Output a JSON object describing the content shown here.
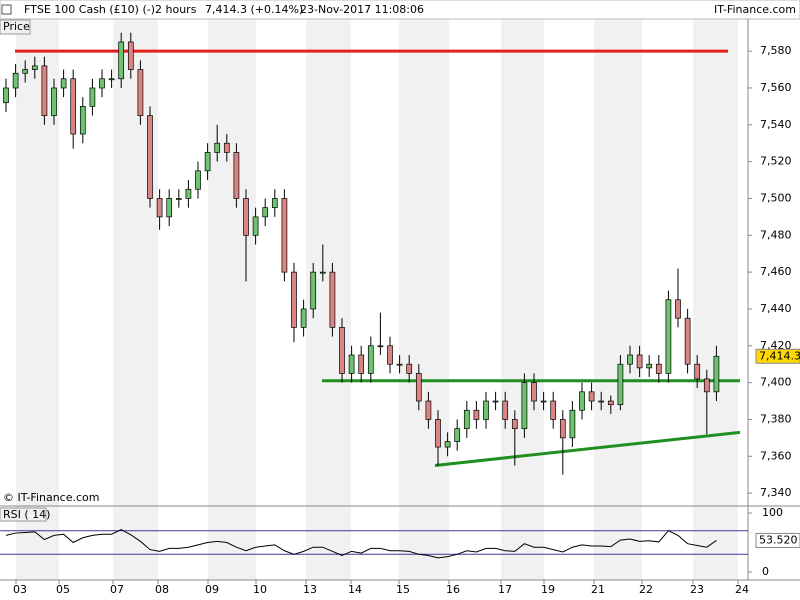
{
  "chart_data": {
    "type": "candlestick",
    "title": "FTSE 100 Cash (£10) (-)",
    "interval": "2 hours",
    "quote": "7,414.3 (+0.14%)",
    "timestamp": "23-Nov-2017 11:08:06",
    "brand": "IT-Finance.com",
    "panel_label": "Price",
    "copyright": "© IT-Finance.com",
    "up_color": "#6cc46c",
    "down_color": "#d98585",
    "open": [
      7552,
      7560,
      7568,
      7570,
      7572,
      7545,
      7560,
      7565,
      7535,
      7550,
      7560,
      7565,
      7565,
      7585,
      7570,
      7545,
      7500,
      7490,
      7500,
      7500,
      7505,
      7515,
      7525,
      7530,
      7525,
      7500,
      7480,
      7490,
      7495,
      7500,
      7460,
      7430,
      7440,
      7460,
      7460,
      7430,
      7405,
      7415,
      7405,
      7420,
      7420,
      7410,
      7410,
      7405,
      7390,
      7380,
      7365,
      7368,
      7375,
      7385,
      7380,
      7390,
      7390,
      7380,
      7375,
      7400,
      7390,
      7390,
      7380,
      7370,
      7385,
      7395,
      7390,
      7390,
      7388,
      7410,
      7415,
      7408,
      7410,
      7405,
      7445,
      7435,
      7410,
      7402,
      7395
    ],
    "high": [
      7565,
      7573,
      7575,
      7577,
      7577,
      7565,
      7570,
      7570,
      7555,
      7565,
      7570,
      7570,
      7590,
      7590,
      7575,
      7550,
      7505,
      7505,
      7505,
      7510,
      7520,
      7530,
      7540,
      7535,
      7530,
      7505,
      7495,
      7500,
      7505,
      7505,
      7465,
      7445,
      7465,
      7475,
      7465,
      7435,
      7420,
      7420,
      7425,
      7438,
      7425,
      7415,
      7415,
      7410,
      7395,
      7385,
      7373,
      7380,
      7390,
      7390,
      7395,
      7395,
      7395,
      7385,
      7405,
      7405,
      7395,
      7395,
      7385,
      7390,
      7400,
      7400,
      7395,
      7393,
      7415,
      7420,
      7420,
      7415,
      7415,
      7450,
      7462,
      7440,
      7415,
      7407,
      7420
    ],
    "low": [
      7547,
      7555,
      7563,
      7565,
      7540,
      7540,
      7555,
      7527,
      7530,
      7545,
      7555,
      7560,
      7560,
      7565,
      7540,
      7495,
      7483,
      7485,
      7495,
      7495,
      7500,
      7510,
      7520,
      7520,
      7495,
      7455,
      7475,
      7485,
      7490,
      7455,
      7422,
      7425,
      7435,
      7455,
      7425,
      7400,
      7400,
      7400,
      7400,
      7415,
      7405,
      7405,
      7400,
      7385,
      7375,
      7355,
      7360,
      7363,
      7370,
      7375,
      7375,
      7385,
      7375,
      7355,
      7370,
      7385,
      7385,
      7375,
      7350,
      7365,
      7380,
      7385,
      7385,
      7383,
      7385,
      7405,
      7403,
      7403,
      7400,
      7400,
      7430,
      7405,
      7397,
      7372,
      7390
    ],
    "close": [
      7560,
      7568,
      7570,
      7572,
      7545,
      7560,
      7565,
      7535,
      7550,
      7560,
      7565,
      7565,
      7585,
      7570,
      7545,
      7500,
      7490,
      7500,
      7500,
      7505,
      7515,
      7525,
      7530,
      7525,
      7500,
      7480,
      7490,
      7495,
      7500,
      7460,
      7430,
      7440,
      7460,
      7460,
      7430,
      7405,
      7415,
      7405,
      7420,
      7420,
      7410,
      7410,
      7405,
      7390,
      7380,
      7365,
      7368,
      7375,
      7385,
      7380,
      7390,
      7390,
      7380,
      7375,
      7400,
      7390,
      7390,
      7380,
      7370,
      7385,
      7395,
      7390,
      7390,
      7388,
      7410,
      7415,
      7408,
      7410,
      7405,
      7445,
      7435,
      7410,
      7402,
      7395,
      7414.3
    ],
    "last_price": 7414.3,
    "last_price_label": "7,414.3",
    "ylim": [
      7333,
      7598
    ],
    "yticks": [
      {
        "value": 7340,
        "label": "7,340"
      },
      {
        "value": 7360,
        "label": "7,360"
      },
      {
        "value": 7380,
        "label": "7,380"
      },
      {
        "value": 7400,
        "label": "7,400"
      },
      {
        "value": 7420,
        "label": "7,420"
      },
      {
        "value": 7440,
        "label": "7,440"
      },
      {
        "value": 7460,
        "label": "7,460"
      },
      {
        "value": 7480,
        "label": "7,480"
      },
      {
        "value": 7500,
        "label": "7,500"
      },
      {
        "value": 7520,
        "label": "7,520"
      },
      {
        "value": 7540,
        "label": "7,540"
      },
      {
        "value": 7560,
        "label": "7,560"
      },
      {
        "value": 7580,
        "label": "7,580"
      }
    ],
    "x_labels": [
      "03",
      "05",
      "07",
      "08",
      "09",
      "10",
      "13",
      "14",
      "15",
      "16",
      "17",
      "19",
      "21",
      "22",
      "23",
      "24"
    ],
    "trendlines": [
      {
        "color": "#e8201a",
        "y": [
          7580,
          7580
        ]
      },
      {
        "color": "#1f8f1f",
        "y": [
          7401,
          7401
        ]
      },
      {
        "color": "#1f8f1f",
        "y": [
          7355,
          7373
        ]
      }
    ],
    "rsi": {
      "name": "RSI ( 14)",
      "color": "#000000",
      "values": [
        62,
        66,
        67,
        68,
        55,
        62,
        64,
        50,
        58,
        62,
        64,
        64,
        72,
        63,
        52,
        38,
        35,
        40,
        40,
        42,
        46,
        50,
        52,
        50,
        42,
        36,
        42,
        44,
        46,
        36,
        30,
        35,
        42,
        42,
        35,
        28,
        35,
        32,
        40,
        40,
        36,
        36,
        35,
        30,
        28,
        24,
        26,
        30,
        36,
        34,
        40,
        40,
        36,
        35,
        48,
        42,
        42,
        38,
        34,
        42,
        46,
        44,
        44,
        43,
        54,
        56,
        52,
        53,
        51,
        70,
        62,
        48,
        45,
        42,
        53.52
      ],
      "last_label": "53.520",
      "ylim": [
        0,
        100
      ],
      "yticks": [
        0,
        100
      ],
      "levels": [
        30,
        70
      ],
      "level_color": "#3a3aa0"
    }
  }
}
